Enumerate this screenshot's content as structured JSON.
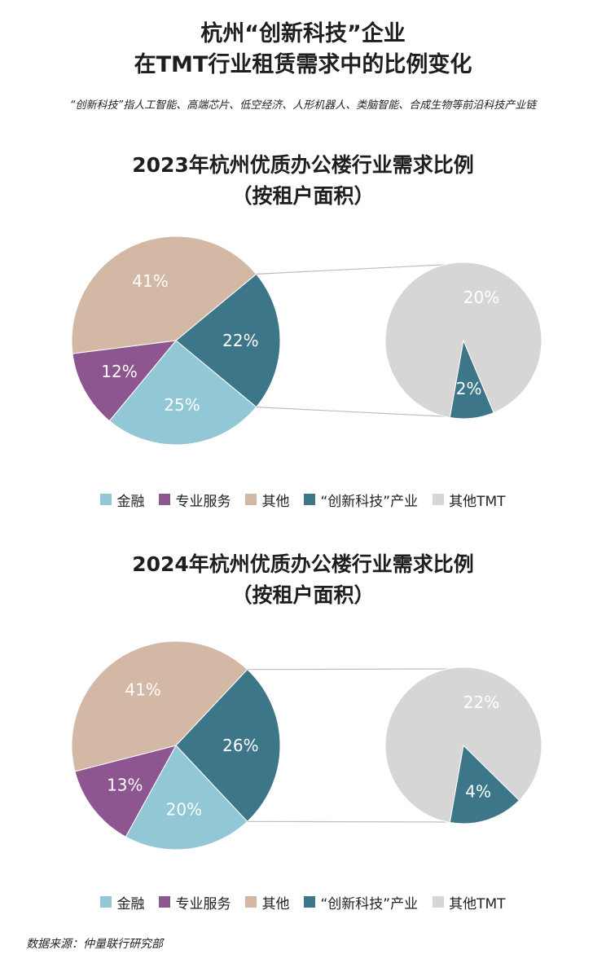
{
  "header": {
    "title_line1": "杭州“创新科技”企业",
    "title_line2": "在TMT行业租赁需求中的比例变化",
    "note": "“创新科技”指人工智能、高端芯片、低空经济、人形机器人、类脑智能、合成生物等前沿科技产业链"
  },
  "legend": [
    {
      "label": "金融",
      "color": "#92c7d6"
    },
    {
      "label": "专业服务",
      "color": "#8e5690"
    },
    {
      "label": "其他",
      "color": "#d4b8a6"
    },
    {
      "label": "“创新科技”产业",
      "color": "#3d7689"
    },
    {
      "label": "其他TMT",
      "color": "#d6d6d6"
    }
  ],
  "chart_data": [
    {
      "type": "pie",
      "title_line1": "2023年杭州优质办公楼行业需求比例",
      "title_line2": "（按租户面积）",
      "slices": [
        {
          "label": "“创新科技”产业",
          "value": 22,
          "display": "22%",
          "color": "#3d7689"
        },
        {
          "label": "金融",
          "value": 25,
          "display": "25%",
          "color": "#92c7d6"
        },
        {
          "label": "专业服务",
          "value": 12,
          "display": "12%",
          "color": "#8e5690"
        },
        {
          "label": "其他",
          "value": 41,
          "display": "41%",
          "color": "#d4b8a6"
        }
      ],
      "breakdown": {
        "of": "“创新科技”产业",
        "slices": [
          {
            "label": "“创新科技”产业",
            "value": 2,
            "display": "2%",
            "color": "#3d7689"
          },
          {
            "label": "其他TMT",
            "value": 20,
            "display": "20%",
            "color": "#d6d6d6"
          }
        ]
      }
    },
    {
      "type": "pie",
      "title_line1": "2024年杭州优质办公楼行业需求比例",
      "title_line2": "（按租户面积）",
      "slices": [
        {
          "label": "“创新科技”产业",
          "value": 26,
          "display": "26%",
          "color": "#3d7689"
        },
        {
          "label": "金融",
          "value": 20,
          "display": "20%",
          "color": "#92c7d6"
        },
        {
          "label": "专业服务",
          "value": 13,
          "display": "13%",
          "color": "#8e5690"
        },
        {
          "label": "其他",
          "value": 41,
          "display": "41%",
          "color": "#d4b8a6"
        }
      ],
      "breakdown": {
        "of": "“创新科技”产业",
        "slices": [
          {
            "label": "“创新科技”产业",
            "value": 4,
            "display": "4%",
            "color": "#3d7689"
          },
          {
            "label": "其他TMT",
            "value": 22,
            "display": "22%",
            "color": "#d6d6d6"
          }
        ]
      }
    }
  ],
  "source": "数据来源：仲量联行研究部"
}
